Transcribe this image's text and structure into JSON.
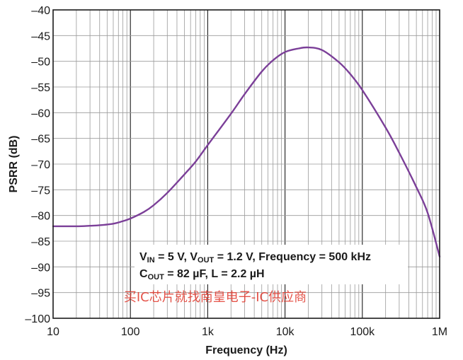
{
  "chart_data": {
    "type": "line",
    "xlabel": "Frequency (Hz)",
    "ylabel": "PSRR (dB)",
    "x_scale": "log",
    "xlim": [
      10,
      1000000
    ],
    "ylim": [
      -100,
      -40
    ],
    "grid": true,
    "x_ticks": [
      {
        "value": 10,
        "label": "10"
      },
      {
        "value": 100,
        "label": "100"
      },
      {
        "value": 1000,
        "label": "1k"
      },
      {
        "value": 10000,
        "label": "10k"
      },
      {
        "value": 100000,
        "label": "100k"
      },
      {
        "value": 1000000,
        "label": "1M"
      }
    ],
    "y_ticks": [
      -40,
      -45,
      -50,
      -55,
      -60,
      -65,
      -70,
      -75,
      -80,
      -85,
      -90,
      -95,
      -100
    ],
    "y_tick_labels": [
      "–40",
      "–45",
      "–50",
      "–55",
      "–60",
      "–65",
      "–70",
      "–75",
      "–80",
      "–85",
      "–90",
      "–95",
      "–100"
    ],
    "series": [
      {
        "color": "#7b3f98",
        "x": [
          10,
          20,
          30,
          40,
          60,
          80,
          100,
          150,
          200,
          300,
          500,
          700,
          1000,
          2000,
          3000,
          5000,
          7000,
          10000,
          15000,
          20000,
          30000,
          50000,
          70000,
          100000,
          200000,
          300000,
          500000,
          700000,
          1000000
        ],
        "y": [
          -82.1,
          -82.1,
          -82.0,
          -81.9,
          -81.6,
          -81.1,
          -80.6,
          -79.3,
          -78.0,
          -75.6,
          -72.0,
          -69.5,
          -66.3,
          -60.2,
          -56.4,
          -52.0,
          -49.8,
          -48.2,
          -47.5,
          -47.3,
          -47.8,
          -50.2,
          -52.5,
          -55.6,
          -62.9,
          -67.8,
          -74.5,
          -79.5,
          -88.0
        ]
      }
    ],
    "annotation_lines": [
      {
        "segments": [
          {
            "t": "V",
            "sub": false
          },
          {
            "t": "IN",
            "sub": true
          },
          {
            "t": " = 5 V, V",
            "sub": false
          },
          {
            "t": "OUT",
            "sub": true
          },
          {
            "t": " = 1.2 V, Frequency = 500 kHz",
            "sub": false
          }
        ]
      },
      {
        "segments": [
          {
            "t": "C",
            "sub": false
          },
          {
            "t": "OUT",
            "sub": true
          },
          {
            "t": " = 82 µF, L = 2.2 µH",
            "sub": false
          }
        ]
      }
    ]
  },
  "watermark": "买IC芯片就找南皇电子-IC供应商",
  "colors": {
    "curve": "#7b3f98",
    "grid": "#9a9a9a",
    "frame": "#1a1a1a",
    "watermark": "#e1372b"
  }
}
